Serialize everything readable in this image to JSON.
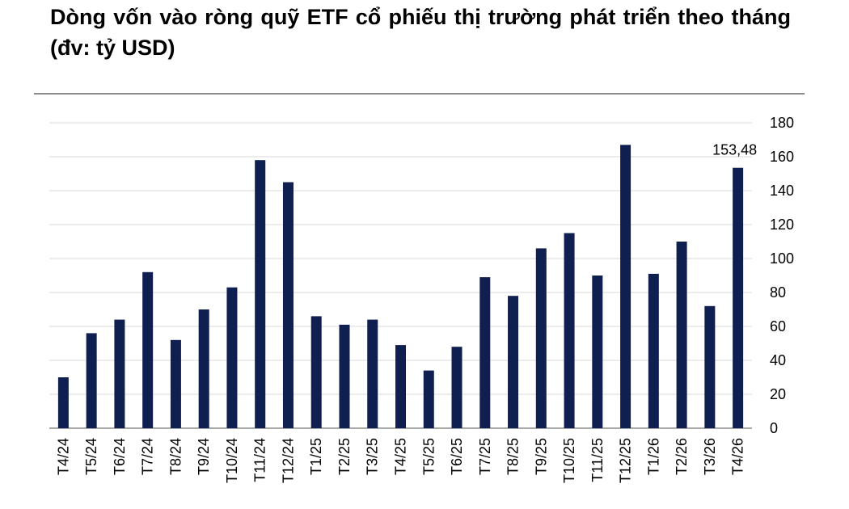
{
  "title": "Dòng vốn vào ròng quỹ ETF cổ phiếu thị trường phát triển theo tháng (đv: tỷ USD)",
  "colors": {
    "bar": "#0f1f4f",
    "grid": "#d9d9d9",
    "axis": "#8c8c8c"
  },
  "chart_data": {
    "type": "bar",
    "title": "Dòng vốn vào ròng quỹ ETF cổ phiếu thị trường phát triển theo tháng (đv: tỷ USD)",
    "xlabel": "",
    "ylabel": "",
    "ylim": [
      0,
      180
    ],
    "yticks": [
      0,
      20,
      40,
      60,
      80,
      100,
      120,
      140,
      160,
      180
    ],
    "grid": true,
    "legend": "none",
    "categories": [
      "T4/24",
      "T5/24",
      "T6/24",
      "T7/24",
      "T8/24",
      "T9/24",
      "T10/24",
      "T11/24",
      "T12/24",
      "T1/25",
      "T2/25",
      "T3/25",
      "T4/25",
      "T5/25",
      "T6/25",
      "T7/25",
      "T8/25",
      "T9/25",
      "T10/25",
      "T11/25",
      "T12/25",
      "T1/26",
      "T2/26",
      "T3/26",
      "T4/26"
    ],
    "values": [
      30,
      56,
      64,
      92,
      52,
      70,
      83,
      158,
      145,
      66,
      61,
      64,
      49,
      34,
      48,
      89,
      78,
      106,
      115,
      90,
      167,
      91,
      110,
      72,
      153.48
    ],
    "data_labels": [
      {
        "category": "T4/26",
        "text": "153,48"
      }
    ]
  }
}
